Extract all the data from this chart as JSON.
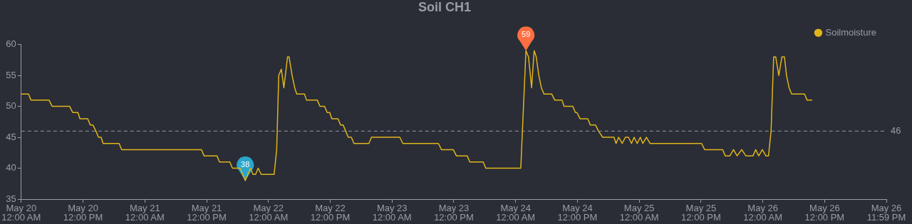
{
  "chart_data": {
    "type": "line",
    "title": "Soil CH1",
    "x": [
      "--05-20T00:00",
      "--05-20T01:24",
      "--05-20T01:54",
      "--05-20T05:24",
      "--05-20T06:00",
      "--05-20T09:24",
      "--05-20T10:00",
      "--05-20T11:00",
      "--05-20T11:24",
      "--05-20T12:54",
      "--05-20T13:24",
      "--05-20T13:54",
      "--05-20T14:30",
      "--05-20T15:00",
      "--05-20T15:30",
      "--05-20T15:54",
      "--05-20T19:00",
      "--05-20T19:30",
      "--05-21T11:00",
      "--05-21T11:30",
      "--05-21T14:00",
      "--05-21T14:30",
      "--05-21T16:30",
      "--05-21T17:00",
      "--05-21T18:30",
      "--05-21T19:30",
      "--05-21T20:30",
      "--05-21T21:00",
      "--05-21T21:30",
      "--05-21T22:00",
      "--05-21T22:36",
      "--05-22T01:06",
      "--05-22T01:36",
      "--05-22T02:00",
      "--05-22T02:30",
      "--05-22T03:00",
      "--05-22T03:42",
      "--05-22T04:00",
      "--05-22T04:36",
      "--05-22T05:06",
      "--05-22T05:30",
      "--05-22T07:00",
      "--05-22T07:24",
      "--05-22T09:30",
      "--05-22T10:00",
      "--05-22T10:54",
      "--05-22T11:24",
      "--05-22T11:54",
      "--05-22T12:18",
      "--05-22T13:30",
      "--05-22T14:00",
      "--05-22T14:30",
      "--05-22T15:00",
      "--05-22T15:30",
      "--05-22T16:06",
      "--05-22T16:36",
      "--05-22T19:30",
      "--05-22T20:00",
      "--05-23T01:30",
      "--05-23T02:06",
      "--05-23T09:00",
      "--05-23T09:36",
      "--05-23T11:54",
      "--05-23T12:30",
      "--05-23T14:36",
      "--05-23T15:06",
      "--05-23T17:42",
      "--05-23T18:12",
      "--05-24T01:00",
      "--05-24T02:00",
      "--05-24T02:30",
      "--05-24T03:06",
      "--05-24T03:36",
      "--05-24T04:00",
      "--05-24T04:30",
      "--05-24T05:00",
      "--05-24T05:30",
      "--05-24T07:00",
      "--05-24T07:36",
      "--05-24T09:00",
      "--05-24T09:24",
      "--05-24T11:06",
      "--05-24T11:36",
      "--05-24T11:54",
      "--05-24T12:30",
      "--05-24T14:00",
      "--05-24T14:30",
      "--05-24T15:30",
      "--05-24T16:06",
      "--05-24T16:54",
      "--05-24T19:06",
      "--05-24T19:30",
      "--05-24T20:00",
      "--05-24T20:42",
      "--05-24T21:18",
      "--05-24T21:54",
      "--05-24T22:30",
      "--05-24T23:00",
      "--05-24T23:36",
      "--05-25T00:12",
      "--05-25T00:42",
      "--05-25T01:24",
      "--05-25T02:06",
      "--05-25T12:06",
      "--05-25T12:42",
      "--05-25T16:12",
      "--05-25T16:42",
      "--05-25T17:36",
      "--05-25T18:18",
      "--05-25T19:00",
      "--05-25T19:54",
      "--05-25T20:42",
      "--05-25T22:06",
      "--05-25T22:36",
      "--05-25T23:12",
      "--05-25T23:54",
      "--05-26T00:36",
      "--05-26T01:06",
      "--05-26T01:36",
      "--05-26T02:06",
      "--05-26T02:30",
      "--05-26T03:06",
      "--05-26T03:42",
      "--05-26T04:12",
      "--05-26T04:36",
      "--05-26T05:06",
      "--05-26T05:36",
      "--05-26T08:06",
      "--05-26T08:36",
      "--05-26T09:36"
    ],
    "series": [
      {
        "name": "Soilmoisture",
        "color": "#e0b41c",
        "values": [
          52,
          52,
          51,
          51,
          50,
          50,
          49,
          49,
          48,
          48,
          47,
          47,
          46,
          45,
          45,
          44,
          44,
          43,
          43,
          42,
          42,
          41,
          41,
          40,
          40,
          38,
          40,
          39,
          39,
          40,
          39,
          39,
          43,
          55,
          56,
          53,
          58,
          58,
          55,
          53,
          52,
          52,
          51,
          51,
          50,
          50,
          49,
          49,
          48,
          48,
          47,
          47,
          46,
          45,
          45,
          44,
          44,
          45,
          45,
          44,
          44,
          43,
          43,
          42,
          42,
          41,
          41,
          40,
          40,
          59,
          58,
          53,
          59,
          58,
          55,
          53,
          52,
          52,
          51,
          51,
          50,
          50,
          49,
          49,
          48,
          48,
          47,
          47,
          46,
          45,
          45,
          44,
          45,
          44,
          45,
          45,
          44,
          45,
          44,
          45,
          44,
          45,
          44,
          44,
          43,
          43,
          42,
          42,
          43,
          42,
          43,
          42,
          42,
          43,
          42,
          43,
          42,
          42,
          46,
          58,
          58,
          55,
          58,
          58,
          55,
          53,
          52,
          52,
          51,
          51
        ]
      }
    ],
    "xlim": [
      "--05-20T00:00",
      "--05-26T23:59"
    ],
    "xticks": [
      {
        "value": "--05-20T00:00",
        "label": "May 20\n12:00 AM"
      },
      {
        "value": "--05-20T12:00",
        "label": "May 20\n12:00 PM"
      },
      {
        "value": "--05-21T00:00",
        "label": "May 21\n12:00 AM"
      },
      {
        "value": "--05-21T12:00",
        "label": "May 21\n12:00 PM"
      },
      {
        "value": "--05-22T00:00",
        "label": "May 22\n12:00 AM"
      },
      {
        "value": "--05-22T12:00",
        "label": "May 22\n12:00 PM"
      },
      {
        "value": "--05-23T00:00",
        "label": "May 23\n12:00 AM"
      },
      {
        "value": "--05-23T12:00",
        "label": "May 23\n12:00 PM"
      },
      {
        "value": "--05-24T00:00",
        "label": "May 24\n12:00 AM"
      },
      {
        "value": "--05-24T12:00",
        "label": "May 24\n12:00 PM"
      },
      {
        "value": "--05-25T00:00",
        "label": "May 25\n12:00 AM"
      },
      {
        "value": "--05-25T12:00",
        "label": "May 25\n12:00 PM"
      },
      {
        "value": "--05-26T00:00",
        "label": "May 26\n12:00 AM"
      },
      {
        "value": "--05-26T12:00",
        "label": "May 26\n12:00 PM"
      },
      {
        "value": "--05-26T23:59",
        "label": "May 26\n11:59 PM"
      }
    ],
    "ylim": [
      35,
      60
    ],
    "yticks": [
      35,
      40,
      45,
      50,
      55,
      60
    ],
    "ref_lines": [
      {
        "axis": "y",
        "value": 46,
        "label": "46",
        "color": "#9a9ca3",
        "line_style": "dashed"
      }
    ],
    "annotations": [
      {
        "text": "59",
        "x": "--05-24T02:00",
        "y": 59
      },
      {
        "text": "38",
        "x": "--05-21T19:30",
        "y": 38
      }
    ],
    "legend": "top right"
  }
}
